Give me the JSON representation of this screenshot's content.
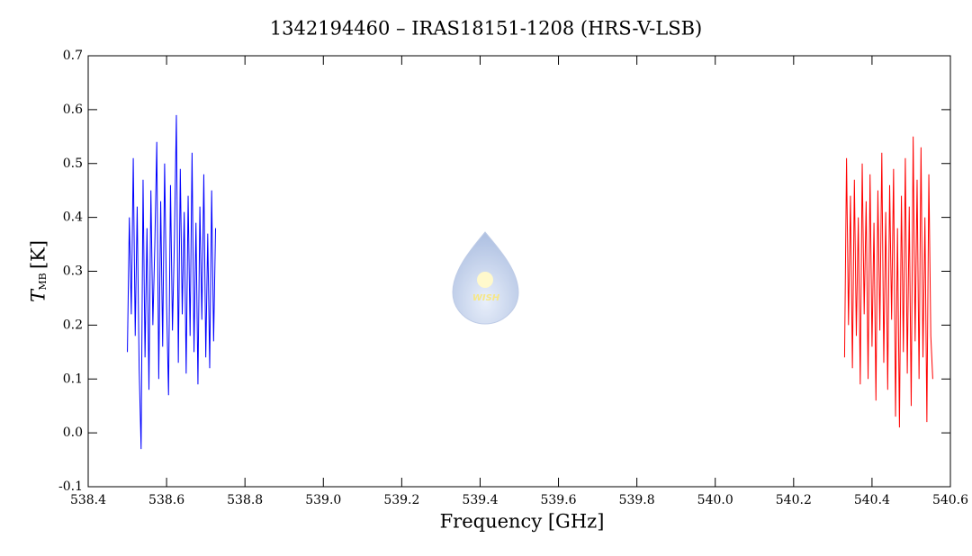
{
  "chart_data": {
    "type": "line",
    "title": "1342194460 – IRAS18151-1208 (HRS-V-LSB)",
    "xlabel": "Frequency [GHz]",
    "ylabel": "T",
    "ylabel_sub": "MB",
    "ylabel_unit": "[K]",
    "logo_text": "WISH",
    "xlim": [
      538.4,
      540.6
    ],
    "xticks": [
      538.4,
      538.6,
      538.8,
      {
        "value": 539,
        "label": "539.0"
      },
      539.2,
      539.4,
      539.6,
      539.8,
      {
        "value": 540,
        "label": "540.0"
      },
      540.2,
      540.4,
      540.6
    ],
    "ylim": [
      -0.1,
      0.7
    ],
    "yticks": [
      -0.1,
      {
        "value": 0,
        "label": "0.0"
      },
      0.1,
      0.2,
      0.3,
      0.4,
      0.5,
      0.6,
      0.7
    ],
    "series": [
      {
        "color": "#0000ff",
        "x": [
          538.5,
          538.505,
          538.51,
          538.515,
          538.52,
          538.525,
          538.53,
          538.535,
          538.54,
          538.545,
          538.55,
          538.555,
          538.56,
          538.565,
          538.57,
          538.575,
          538.58,
          538.585,
          538.59,
          538.595,
          538.6,
          538.605,
          538.61,
          538.615,
          538.62,
          538.625,
          538.63,
          538.635,
          538.64,
          538.645,
          538.65,
          538.655,
          538.66,
          538.665,
          538.67,
          538.675,
          538.68,
          538.685,
          538.69,
          538.695,
          538.7,
          538.705,
          538.71,
          538.715,
          538.72,
          538.725
        ],
        "values": [
          0.15,
          0.4,
          0.22,
          0.51,
          0.18,
          0.42,
          0.12,
          -0.03,
          0.47,
          0.14,
          0.38,
          0.08,
          0.45,
          0.2,
          0.35,
          0.54,
          0.1,
          0.43,
          0.16,
          0.5,
          0.24,
          0.07,
          0.46,
          0.19,
          0.36,
          0.59,
          0.13,
          0.49,
          0.22,
          0.41,
          0.11,
          0.44,
          0.18,
          0.52,
          0.15,
          0.39,
          0.09,
          0.42,
          0.21,
          0.48,
          0.14,
          0.37,
          0.12,
          0.45,
          0.17,
          0.38
        ]
      },
      {
        "color": "#ff0000",
        "x": [
          540.33,
          540.335,
          540.34,
          540.345,
          540.35,
          540.355,
          540.36,
          540.365,
          540.37,
          540.375,
          540.38,
          540.385,
          540.39,
          540.395,
          540.4,
          540.405,
          540.41,
          540.415,
          540.42,
          540.425,
          540.43,
          540.435,
          540.44,
          540.445,
          540.45,
          540.455,
          540.46,
          540.465,
          540.47,
          540.475,
          540.48,
          540.485,
          540.49,
          540.495,
          540.5,
          540.505,
          540.51,
          540.515,
          540.52,
          540.525,
          540.53,
          540.535,
          540.54,
          540.545,
          540.55,
          540.555
        ],
        "values": [
          0.14,
          0.51,
          0.2,
          0.44,
          0.12,
          0.47,
          0.18,
          0.4,
          0.09,
          0.5,
          0.22,
          0.43,
          0.1,
          0.48,
          0.16,
          0.39,
          0.06,
          0.45,
          0.19,
          0.52,
          0.13,
          0.41,
          0.08,
          0.46,
          0.21,
          0.49,
          0.03,
          0.38,
          0.01,
          0.44,
          0.15,
          0.51,
          0.11,
          0.42,
          0.05,
          0.55,
          0.17,
          0.47,
          0.1,
          0.53,
          0.14,
          0.4,
          0.02,
          0.48,
          0.18,
          0.1
        ]
      }
    ]
  }
}
